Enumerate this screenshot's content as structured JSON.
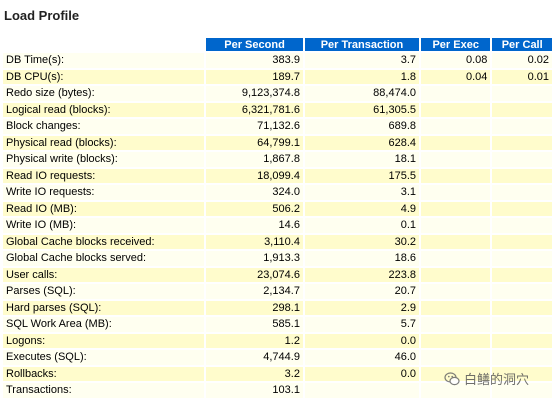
{
  "title": "Load Profile",
  "headers": [
    "Per Second",
    "Per Transaction",
    "Per Exec",
    "Per Call"
  ],
  "rows": [
    {
      "name": "DB Time(s):",
      "ps": "383.9",
      "pt": "3.7",
      "pe": "0.08",
      "pc": "0.02"
    },
    {
      "name": "DB CPU(s):",
      "ps": "189.7",
      "pt": "1.8",
      "pe": "0.04",
      "pc": "0.01"
    },
    {
      "name": "Redo size (bytes):",
      "ps": "9,123,374.8",
      "pt": "88,474.0",
      "pe": "",
      "pc": ""
    },
    {
      "name": "Logical read (blocks):",
      "ps": "6,321,781.6",
      "pt": "61,305.5",
      "pe": "",
      "pc": ""
    },
    {
      "name": "Block changes:",
      "ps": "71,132.6",
      "pt": "689.8",
      "pe": "",
      "pc": ""
    },
    {
      "name": "Physical read (blocks):",
      "ps": "64,799.1",
      "pt": "628.4",
      "pe": "",
      "pc": ""
    },
    {
      "name": "Physical write (blocks):",
      "ps": "1,867.8",
      "pt": "18.1",
      "pe": "",
      "pc": ""
    },
    {
      "name": "Read IO requests:",
      "ps": "18,099.4",
      "pt": "175.5",
      "pe": "",
      "pc": ""
    },
    {
      "name": "Write IO requests:",
      "ps": "324.0",
      "pt": "3.1",
      "pe": "",
      "pc": ""
    },
    {
      "name": "Read IO (MB):",
      "ps": "506.2",
      "pt": "4.9",
      "pe": "",
      "pc": ""
    },
    {
      "name": "Write IO (MB):",
      "ps": "14.6",
      "pt": "0.1",
      "pe": "",
      "pc": ""
    },
    {
      "name": "Global Cache blocks received:",
      "ps": "3,110.4",
      "pt": "30.2",
      "pe": "",
      "pc": ""
    },
    {
      "name": "Global Cache blocks served:",
      "ps": "1,913.3",
      "pt": "18.6",
      "pe": "",
      "pc": ""
    },
    {
      "name": "User calls:",
      "ps": "23,074.6",
      "pt": "223.8",
      "pe": "",
      "pc": ""
    },
    {
      "name": "Parses (SQL):",
      "ps": "2,134.7",
      "pt": "20.7",
      "pe": "",
      "pc": ""
    },
    {
      "name": "Hard parses (SQL):",
      "ps": "298.1",
      "pt": "2.9",
      "pe": "",
      "pc": ""
    },
    {
      "name": "SQL Work Area (MB):",
      "ps": "585.1",
      "pt": "5.7",
      "pe": "",
      "pc": ""
    },
    {
      "name": "Logons:",
      "ps": "1.2",
      "pt": "0.0",
      "pe": "",
      "pc": ""
    },
    {
      "name": "Executes (SQL):",
      "ps": "4,744.9",
      "pt": "46.0",
      "pe": "",
      "pc": ""
    },
    {
      "name": "Rollbacks:",
      "ps": "3.2",
      "pt": "0.0",
      "pe": "",
      "pc": ""
    },
    {
      "name": "Transactions:",
      "ps": "103.1",
      "pt": "",
      "pe": "",
      "pc": ""
    }
  ],
  "watermark": {
    "text": "白鳝的洞穴",
    "icon": "wechat-icon"
  },
  "colors": {
    "header_bg": "#0066cc",
    "row_odd": "#fffff0",
    "row_even": "#fffccc"
  }
}
